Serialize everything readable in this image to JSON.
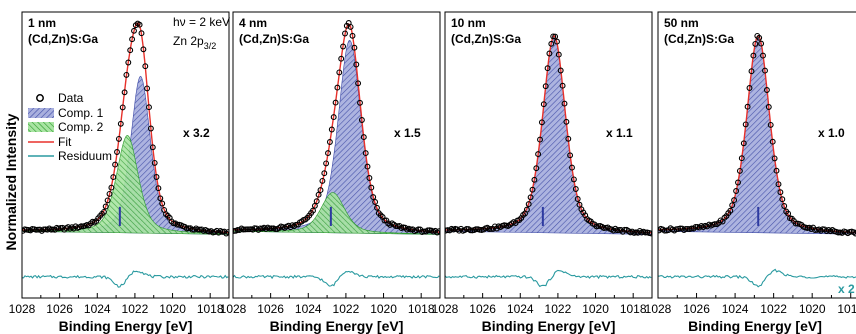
{
  "chart_data": [
    {
      "type": "line",
      "panel_title": "1 nm",
      "panel_subtitle": "(Cd,Zn)S:Ga",
      "annotation_line1": "hν = 2 keV",
      "annotation_line2_main": "Zn 2p",
      "annotation_line2_sub": "3/2",
      "scale_label": "x 3.2",
      "xlabel": "Binding Energy [eV]",
      "ylabel": "Normalized Intensity",
      "x_ticks": [
        "1028",
        "1026",
        "1024",
        "1022",
        "1020",
        "1018"
      ],
      "xlim": [
        1028,
        1017
      ],
      "ylim": [
        -0.3,
        1.05
      ],
      "components": [
        {
          "name": "Comp. 1",
          "center": 1021.7,
          "amp": 0.74,
          "width": 0.62
        },
        {
          "name": "Comp. 2",
          "center": 1022.4,
          "amp": 0.46,
          "width": 0.68
        }
      ],
      "marker_x": 1022.8,
      "residual_offset": -0.2
    },
    {
      "type": "line",
      "panel_title": "4 nm",
      "panel_subtitle": "(Cd,Zn)S:Ga",
      "scale_label": "x 1.5",
      "xlabel": "Binding Energy [eV]",
      "x_ticks": [
        "1028",
        "1026",
        "1024",
        "1022",
        "1020",
        "1018"
      ],
      "xlim": [
        1028,
        1017
      ],
      "ylim": [
        -0.3,
        1.05
      ],
      "components": [
        {
          "name": "Comp. 1",
          "center": 1021.8,
          "amp": 0.91,
          "width": 0.72
        },
        {
          "name": "Comp. 2",
          "center": 1022.7,
          "amp": 0.19,
          "width": 0.75
        }
      ],
      "marker_x": 1022.8,
      "residual_offset": -0.2
    },
    {
      "type": "line",
      "panel_title": "10 nm",
      "panel_subtitle": "(Cd,Zn)S:Ga",
      "scale_label": "x 1.1",
      "xlabel": "Binding Energy [eV]",
      "x_ticks": [
        "1028",
        "1026",
        "1024",
        "1022",
        "1020",
        "1018"
      ],
      "xlim": [
        1028,
        1017
      ],
      "ylim": [
        -0.3,
        1.05
      ],
      "components": [
        {
          "name": "Comp. 1",
          "center": 1022.2,
          "amp": 0.93,
          "width": 0.72
        }
      ],
      "marker_x": 1022.8,
      "residual_offset": -0.2
    },
    {
      "type": "line",
      "panel_title": "50 nm",
      "panel_subtitle": "(Cd,Zn)S:Ga",
      "scale_label": "x 1.0",
      "extra_label": "x 2",
      "xlabel": "Binding Energy [eV]",
      "x_ticks": [
        "1028",
        "1026",
        "1024",
        "1022",
        "1020",
        "1018"
      ],
      "xlim": [
        1028,
        1017
      ],
      "ylim": [
        -0.3,
        1.05
      ],
      "components": [
        {
          "name": "Comp. 1",
          "center": 1022.8,
          "amp": 0.93,
          "width": 0.7
        }
      ],
      "marker_x": 1022.8,
      "residual_offset": -0.2
    }
  ],
  "legend": [
    "Data",
    "Comp. 1",
    "Comp. 2",
    "Fit",
    "Residuum"
  ],
  "colors": {
    "comp1_fill": "#9aa3d6",
    "comp1_hatch": "#3d4aa6",
    "comp2_fill": "#9fe09a",
    "comp2_hatch": "#2a9a2a",
    "fit": "#e8312b",
    "residuum": "#2a9aa0",
    "marker": "#2d3aa0",
    "data": "#000000",
    "axis": "#000000"
  }
}
